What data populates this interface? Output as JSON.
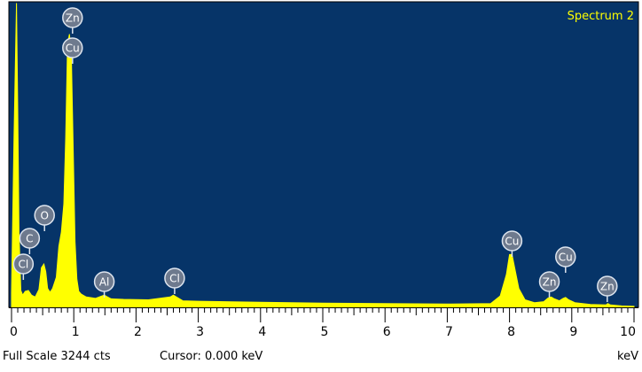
{
  "chart_data": {
    "type": "line",
    "title": "Spectrum 2",
    "xlabel": "keV",
    "xlim": [
      0,
      10
    ],
    "x_ticks": [
      "0",
      "1",
      "2",
      "3",
      "4",
      "5",
      "6",
      "7",
      "8",
      "9",
      "10"
    ],
    "grid": false,
    "legend": "none",
    "full_scale_cts": 3244,
    "series": [
      {
        "x": [
          0.0,
          0.04,
          0.08,
          0.1,
          0.12,
          0.15,
          0.18,
          0.22,
          0.27,
          0.32,
          0.38,
          0.44,
          0.48,
          0.52,
          0.55,
          0.58,
          0.62,
          0.66,
          0.72,
          0.76,
          0.8,
          0.84,
          0.87,
          0.9,
          0.93,
          0.96,
          0.99,
          1.02,
          1.05,
          1.08,
          1.12,
          1.2,
          1.35,
          1.45,
          1.49,
          1.53,
          1.6,
          1.8,
          2.2,
          2.55,
          2.6,
          2.65,
          2.75,
          3.0,
          4.0,
          5.0,
          6.0,
          7.0,
          7.7,
          7.85,
          7.95,
          8.0,
          8.04,
          8.08,
          8.15,
          8.25,
          8.4,
          8.55,
          8.62,
          8.67,
          8.72,
          8.8,
          8.86,
          8.9,
          8.95,
          9.05,
          9.3,
          9.55,
          9.58,
          9.62,
          9.8,
          10.0
        ],
        "y": [
          150,
          1800,
          3230,
          2100,
          800,
          180,
          130,
          170,
          180,
          130,
          110,
          190,
          420,
          460,
          380,
          200,
          160,
          200,
          320,
          650,
          800,
          1100,
          1800,
          2800,
          2900,
          2700,
          1700,
          700,
          300,
          170,
          140,
          110,
          95,
          120,
          130,
          115,
          90,
          85,
          80,
          110,
          130,
          110,
          70,
          65,
          55,
          45,
          40,
          35,
          40,
          120,
          350,
          560,
          560,
          430,
          200,
          80,
          50,
          60,
          100,
          110,
          90,
          70,
          95,
          105,
          80,
          50,
          30,
          25,
          40,
          25,
          15,
          10
        ]
      }
    ],
    "annotations": [
      {
        "label": "Zn",
        "x": 0.98
      },
      {
        "label": "Cu",
        "x": 0.98
      },
      {
        "label": "O",
        "x": 0.53
      },
      {
        "label": "C",
        "x": 0.29
      },
      {
        "label": "Cl",
        "x": 0.19
      },
      {
        "label": "Al",
        "x": 1.49
      },
      {
        "label": "Cl",
        "x": 2.62
      },
      {
        "label": "Cu",
        "x": 8.04
      },
      {
        "label": "Cu",
        "x": 8.9
      },
      {
        "label": "Zn",
        "x": 8.64
      },
      {
        "label": "Zn",
        "x": 9.57
      }
    ]
  },
  "status": {
    "full_scale_label": "Full Scale 3244 cts",
    "cursor_label": "Cursor: 0.000 keV",
    "unit_label": "keV"
  },
  "colors": {
    "plot_background": "#063468",
    "spectrum": "#ffff00",
    "marker_fill": "#6e7a8e",
    "marker_stroke": "#dde4ee",
    "title_text": "#ffff00"
  }
}
